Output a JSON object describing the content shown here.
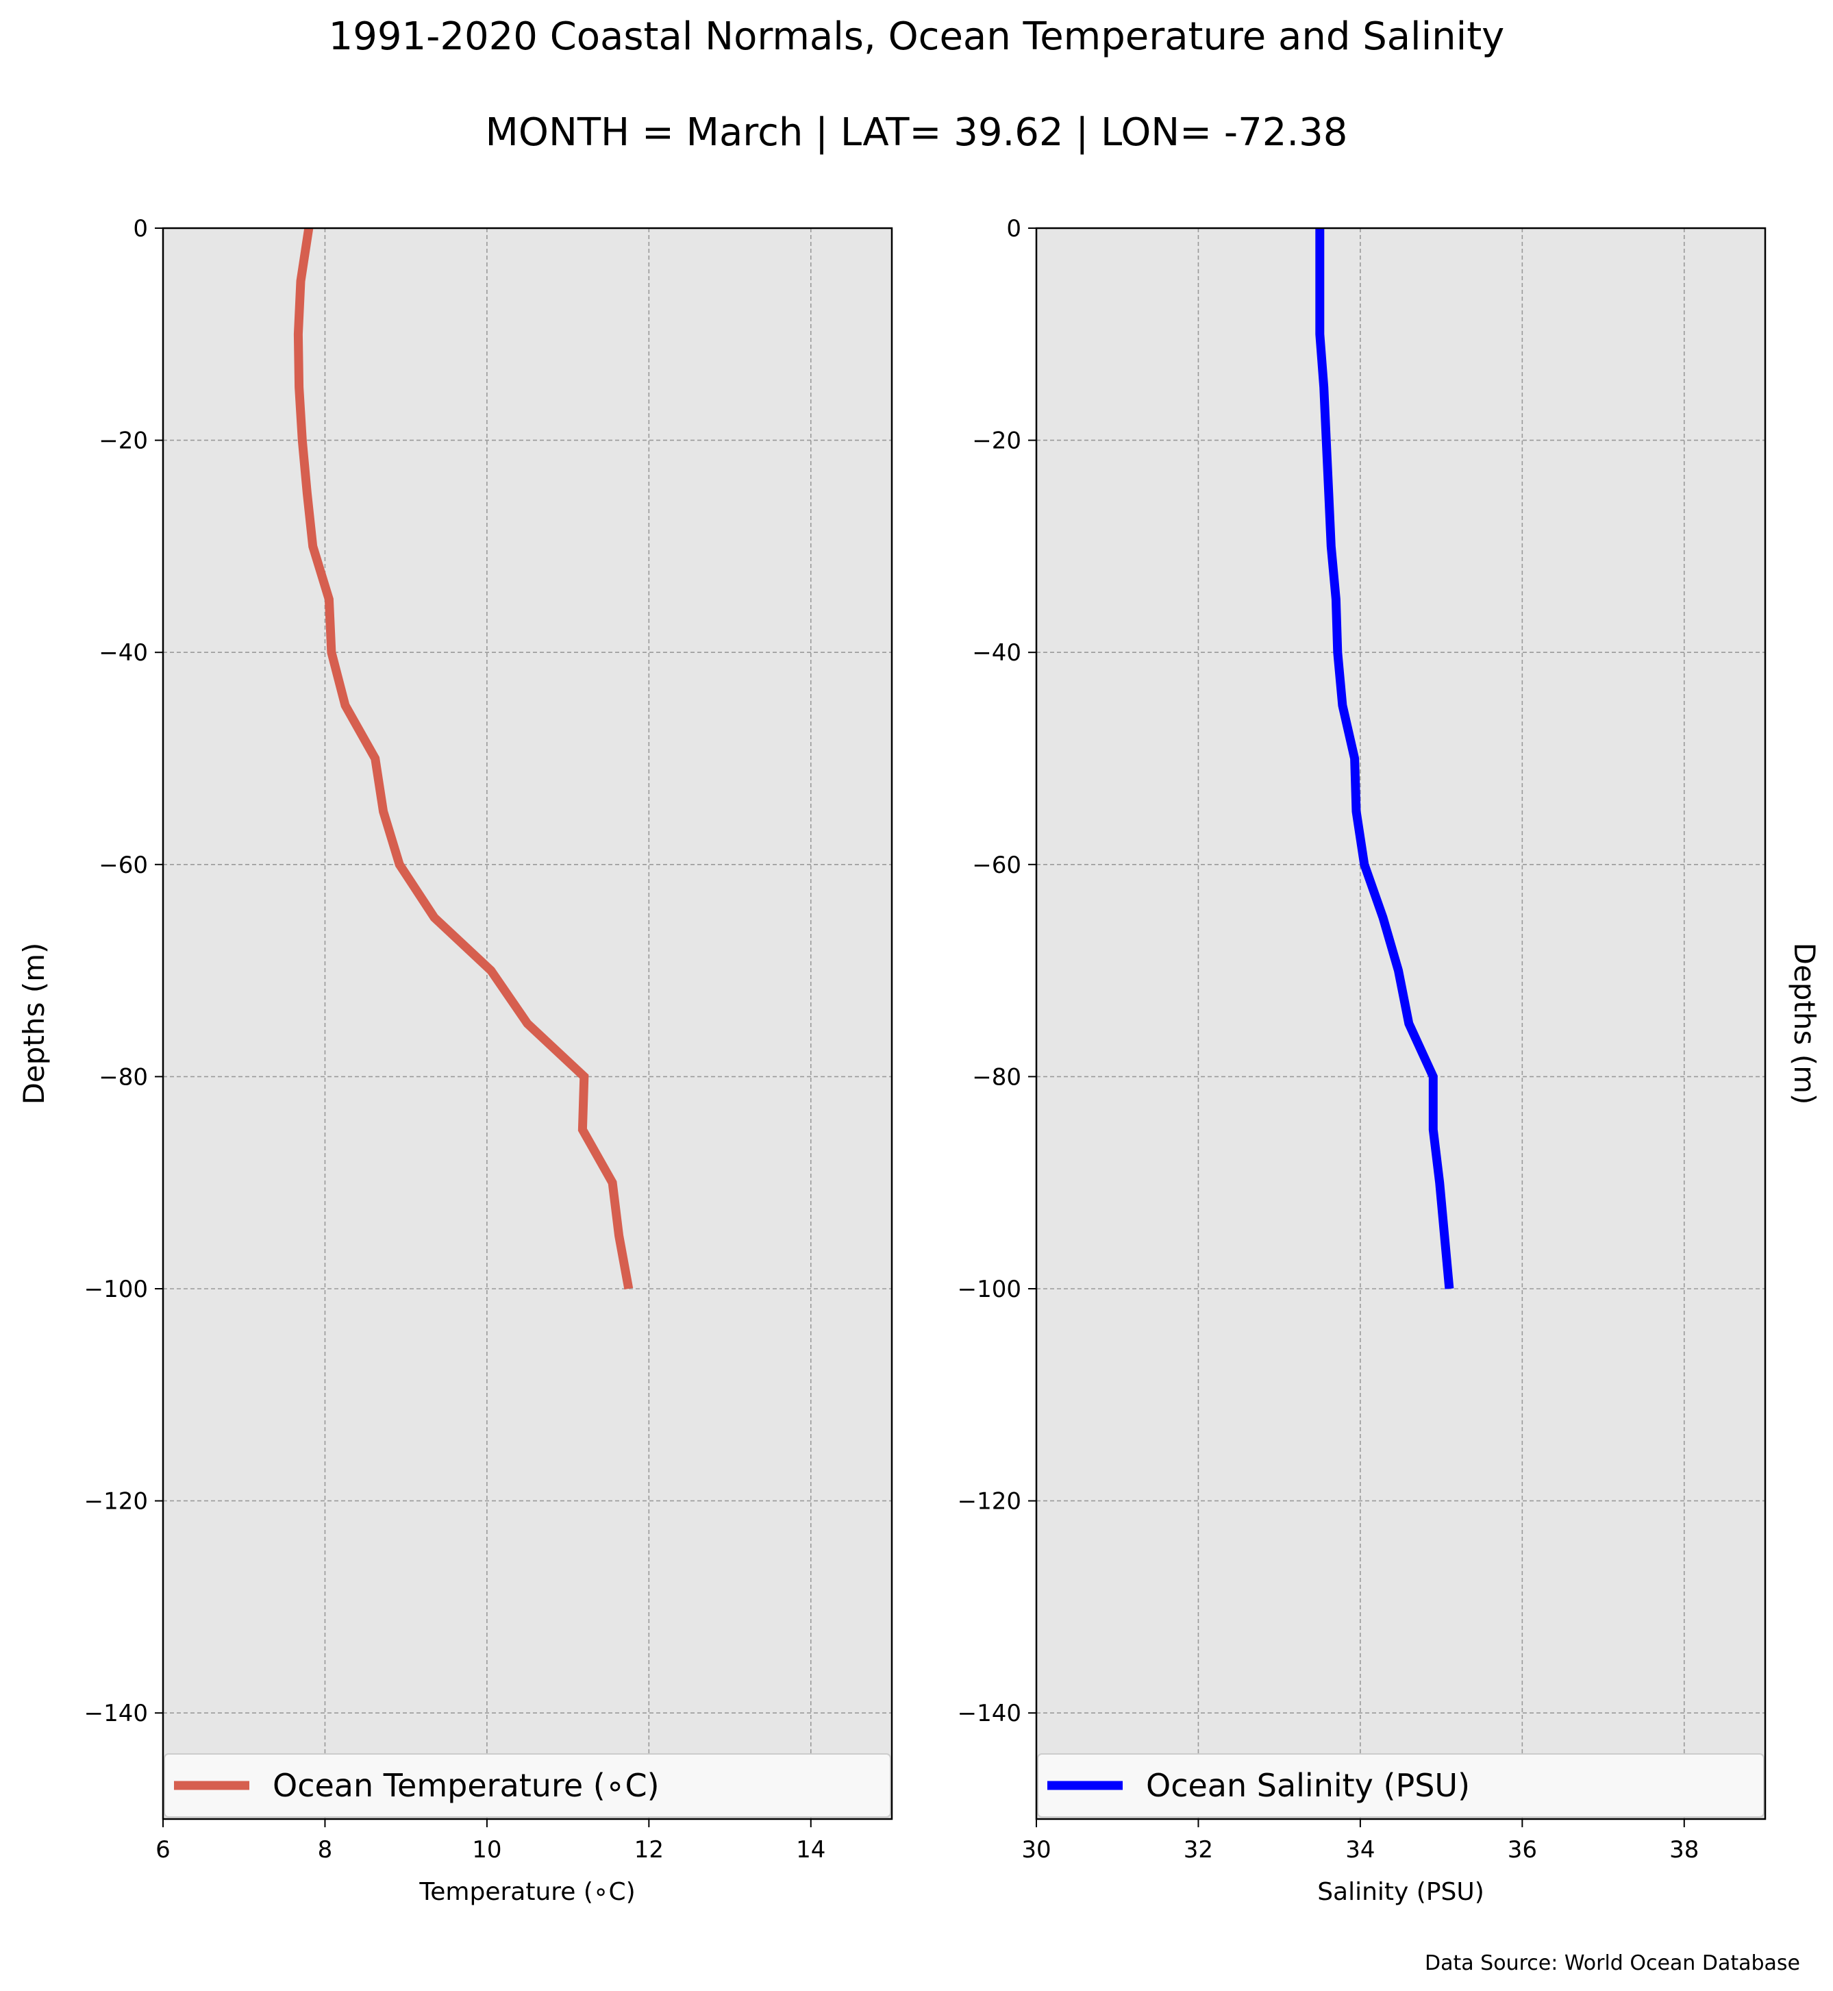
{
  "figure": {
    "title_line1": "1991-2020 Coastal Normals, Ocean Temperature and Salinity",
    "title_line2": "MONTH = March | LAT= 39.62 | LON= -72.38",
    "source_note": "Data Source: World Ocean Database"
  },
  "chart_data": [
    {
      "type": "line",
      "xlabel": "Temperature (∘C)",
      "ylabel": "Depths (m)",
      "xlim": [
        6,
        15
      ],
      "ylim": [
        -150,
        0
      ],
      "xticks": [
        6,
        8,
        10,
        12,
        14
      ],
      "yticks": [
        0,
        -20,
        -40,
        -60,
        -80,
        -100,
        -120,
        -140
      ],
      "grid": true,
      "legend_position": "lower-center",
      "series": [
        {
          "name": "Ocean Temperature (∘C)",
          "color": "#d65f4f",
          "x": [
            7.8,
            7.7,
            7.67,
            7.68,
            7.72,
            7.78,
            7.85,
            8.05,
            8.08,
            8.25,
            8.62,
            8.72,
            8.92,
            9.35,
            10.05,
            10.5,
            11.2,
            11.18,
            11.55,
            11.63,
            11.75
          ],
          "y": [
            0,
            -5,
            -10,
            -15,
            -20,
            -25,
            -30,
            -35,
            -40,
            -45,
            -50,
            -55,
            -60,
            -65,
            -70,
            -75,
            -80,
            -85,
            -90,
            -95,
            -100
          ]
        }
      ]
    },
    {
      "type": "line",
      "xlabel": "Salinity (PSU)",
      "ylabel": "Depths (m)",
      "xlim": [
        30,
        39
      ],
      "ylim": [
        -150,
        0
      ],
      "xticks": [
        30,
        32,
        34,
        36,
        38
      ],
      "yticks": [
        0,
        -20,
        -40,
        -60,
        -80,
        -100,
        -120,
        -140
      ],
      "grid": true,
      "legend_position": "lower-center",
      "series": [
        {
          "name": "Ocean Salinity (PSU)",
          "color": "#0000ff",
          "x": [
            33.5,
            33.5,
            33.5,
            33.55,
            33.58,
            33.61,
            33.64,
            33.7,
            33.72,
            33.78,
            33.93,
            33.95,
            34.05,
            34.28,
            34.47,
            34.6,
            34.9,
            34.9,
            34.98,
            35.04,
            35.1
          ],
          "y": [
            0,
            -5,
            -10,
            -15,
            -20,
            -25,
            -30,
            -35,
            -40,
            -45,
            -50,
            -55,
            -60,
            -65,
            -70,
            -75,
            -80,
            -85,
            -90,
            -95,
            -100
          ]
        }
      ]
    }
  ]
}
